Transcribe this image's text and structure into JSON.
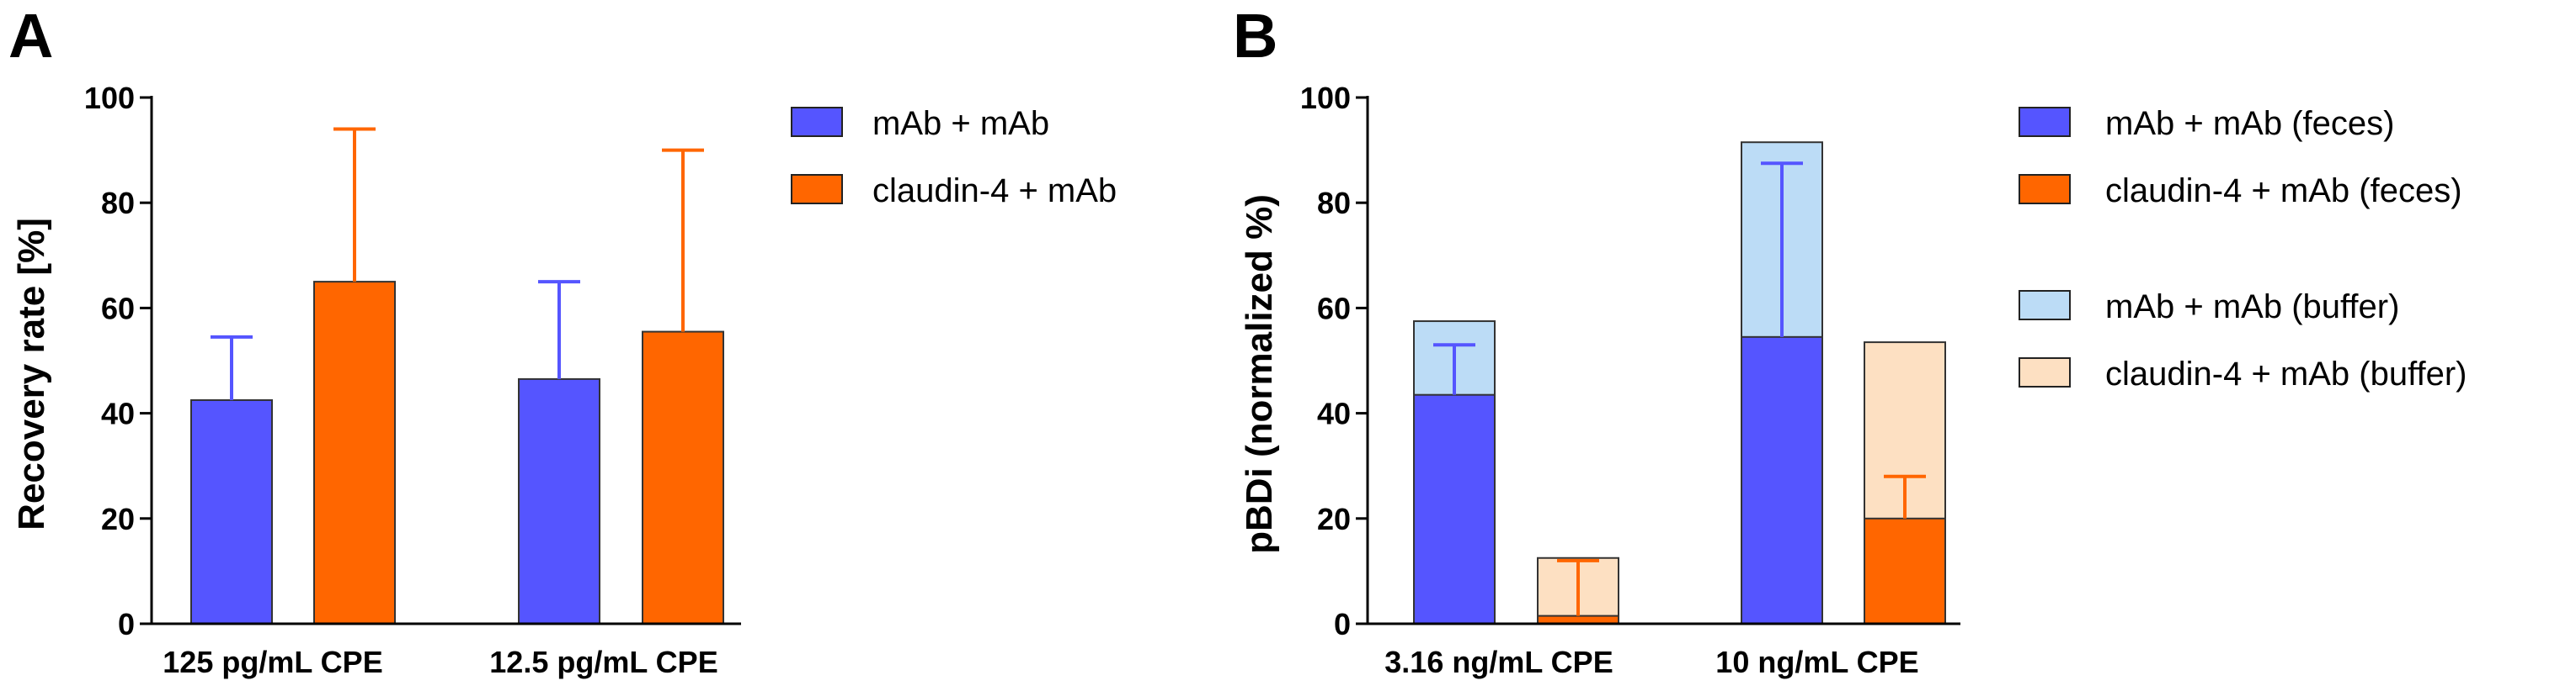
{
  "chart_data": [
    {
      "panel": "A",
      "type": "bar",
      "ylabel": "Recovery rate [%]",
      "ylim": [
        0,
        100
      ],
      "yticks": [
        0,
        20,
        40,
        60,
        80,
        100
      ],
      "grid": false,
      "legend_position": "right",
      "categories": [
        "125 pg/mL CPE",
        "12.5 pg/mL CPE"
      ],
      "series": [
        {
          "name": "mAb + mAb",
          "color": "#5555ff",
          "values": [
            42.5,
            46.5
          ],
          "error_upper": [
            54.5,
            65.0
          ]
        },
        {
          "name": "claudin-4 + mAb",
          "color": "#ff6600",
          "values": [
            65.0,
            55.5
          ],
          "error_upper": [
            94.0,
            90.0
          ]
        }
      ]
    },
    {
      "panel": "B",
      "type": "bar",
      "ylabel": "pBDi (normalized %)",
      "ylim": [
        0,
        100
      ],
      "yticks": [
        0,
        20,
        40,
        60,
        80,
        100
      ],
      "grid": false,
      "legend_position": "right",
      "categories": [
        "3.16 ng/mL CPE",
        "10 ng/mL CPE"
      ],
      "series": [
        {
          "name": "mAb + mAb (feces)",
          "color": "#5555ff",
          "values": [
            43.5,
            54.5
          ],
          "error_upper": [
            53.0,
            87.5
          ]
        },
        {
          "name": "claudin-4 + mAb (feces)",
          "color": "#ff6600",
          "values": [
            1.5,
            20.0
          ],
          "error_upper": [
            12.0,
            28.0
          ]
        },
        {
          "name": "mAb + mAb (buffer)",
          "color": "#bcdcf6",
          "values": [
            57.5,
            91.5
          ]
        },
        {
          "name": "claudin-4 + mAb (buffer)",
          "color": "#fde0c2",
          "values": [
            12.5,
            53.5
          ]
        }
      ]
    }
  ]
}
